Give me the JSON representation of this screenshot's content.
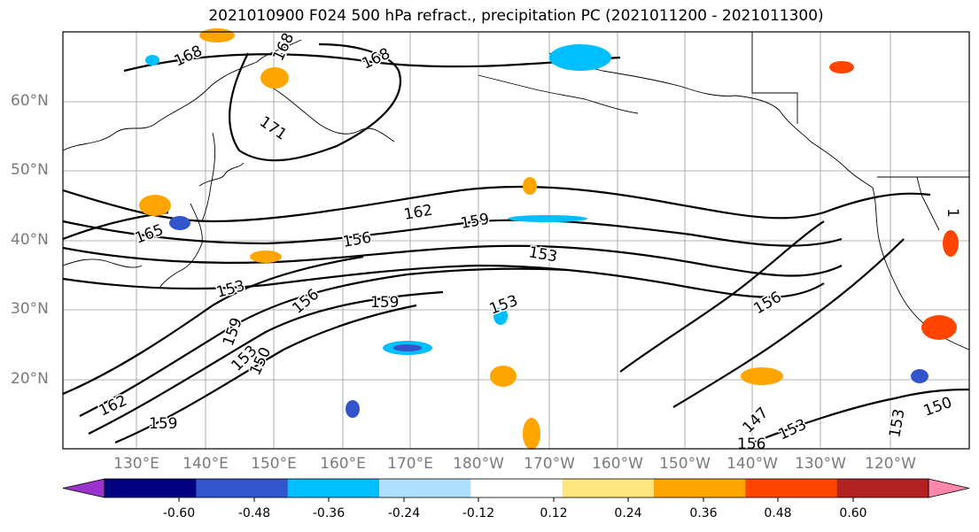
{
  "title": "2021010900 F024 500 hPa refract., precipitation PC (2021011200 - 2021011300)",
  "lat_labels": [
    "60°N",
    "50°N",
    "40°N",
    "30°N",
    "20°N"
  ],
  "lon_labels": [
    "130°E",
    "140°E",
    "150°E",
    "160°E",
    "170°E",
    "180°W",
    "170°W",
    "160°W",
    "150°W",
    "140°W",
    "130°W",
    "120°W"
  ],
  "contour_labels": [
    "168",
    "168",
    "168",
    "171",
    "165",
    "162",
    "159",
    "156",
    "153",
    "153",
    "159",
    "156",
    "153",
    "159",
    "153",
    "156",
    "162",
    "159",
    "147",
    "150",
    "153",
    "153",
    "150",
    "156",
    "1"
  ],
  "colorbar": {
    "colors": [
      "#9933cc",
      "#000080",
      "#3355cc",
      "#00bfff",
      "#b0e0ff",
      "#ffffff",
      "#ffe680",
      "#ffa500",
      "#ff4500",
      "#b22222",
      "#ff88aa"
    ],
    "tick_labels": [
      "-0.60",
      "-0.48",
      "-0.36",
      "-0.24",
      "-0.12",
      "0.12",
      "0.24",
      "0.36",
      "0.48",
      "0.60"
    ]
  }
}
